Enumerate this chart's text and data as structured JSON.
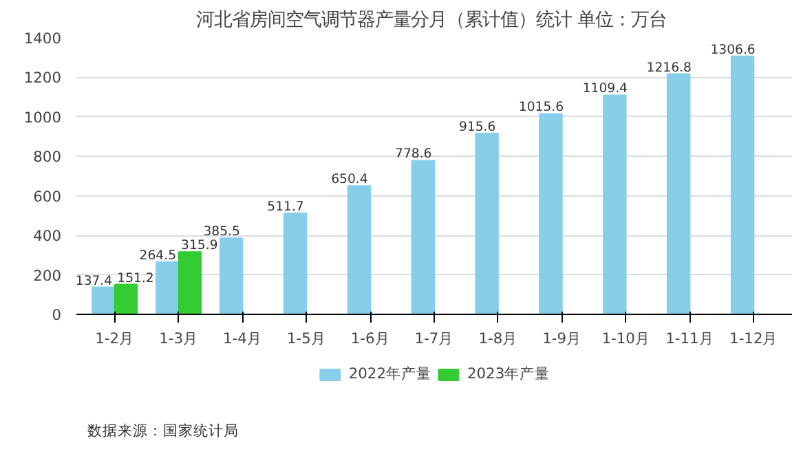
{
  "chart_data": {
    "type": "bar",
    "title": "河北省房间空气调节器产量分月（累计值）统计  单位：万台",
    "categories": [
      "1-2月",
      "1-3月",
      "1-4月",
      "1-5月",
      "1-6月",
      "1-7月",
      "1-8月",
      "1-9月",
      "1-10月",
      "1-11月",
      "1-12月"
    ],
    "series": [
      {
        "name": "2022年产量",
        "color": "#87ceeb",
        "values": [
          137.4,
          264.5,
          385.5,
          511.7,
          650.4,
          778.6,
          915.6,
          1015.6,
          1109.4,
          1216.8,
          1306.6
        ]
      },
      {
        "name": "2023年产量",
        "color": "#33cc33",
        "values": [
          151.2,
          315.9,
          null,
          null,
          null,
          null,
          null,
          null,
          null,
          null,
          null
        ]
      }
    ],
    "ylim": [
      0,
      1400
    ],
    "yticks": [
      0,
      200,
      400,
      600,
      800,
      1000,
      1200,
      1400
    ],
    "grid": "y",
    "legend": "bottom",
    "data_labels": true,
    "annotations": [
      "数据来源：国家统计局"
    ]
  }
}
